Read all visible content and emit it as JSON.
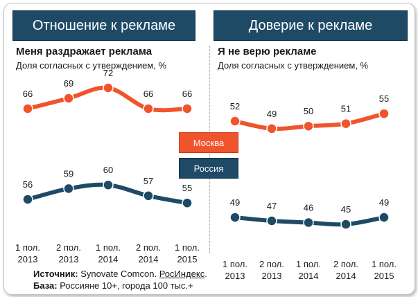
{
  "legend": {
    "moscow": "Москва",
    "russia": "Россия"
  },
  "colors": {
    "moscow": "#f0542d",
    "russia": "#1e4a66"
  },
  "source": {
    "label": "Источник:",
    "text": " Synovate Comcon. ",
    "link": "РосИндекс",
    "end": "."
  },
  "base": {
    "label": "База:",
    "text": " Россияне 10+, города 100 тыс.+"
  },
  "chart_data": [
    {
      "type": "line",
      "title": "Отношение к рекламе",
      "subtitle": "Меня раздражает реклама",
      "note": "Доля согласных с утверждением, %",
      "categories": [
        "1 пол. 2013",
        "2 пол. 2013",
        "1 пол. 2014",
        "2 пол. 2014",
        "1 пол. 2015"
      ],
      "tick_lines": [
        [
          "1 пол.",
          "2013"
        ],
        [
          "2 пол.",
          "2013"
        ],
        [
          "1 пол.",
          "2014"
        ],
        [
          "2 пол.",
          "2014"
        ],
        [
          "1 пол.",
          "2015"
        ]
      ],
      "series": [
        {
          "name": "Москва",
          "values": [
            66,
            69,
            72,
            66,
            66
          ]
        },
        {
          "name": "Россия",
          "values": [
            56,
            59,
            60,
            57,
            55
          ]
        }
      ]
    },
    {
      "type": "line",
      "title": "Доверие к рекламе",
      "subtitle": "Я не верю рекламе",
      "note": "Доля согласных с утверждением, %",
      "categories": [
        "1 пол. 2013",
        "2 пол. 2013",
        "1 пол. 2014",
        "2 пол. 2014",
        "1 пол. 2015"
      ],
      "tick_lines": [
        [
          "1 пол.",
          "2013"
        ],
        [
          "2 пол.",
          "2013"
        ],
        [
          "1 пол.",
          "2014"
        ],
        [
          "2 пол.",
          "2014"
        ],
        [
          "1 пол.",
          "2015"
        ]
      ],
      "series": [
        {
          "name": "Москва",
          "values": [
            52,
            49,
            50,
            51,
            55
          ]
        },
        {
          "name": "Россия",
          "values": [
            49,
            47,
            46,
            45,
            49
          ]
        }
      ]
    }
  ]
}
